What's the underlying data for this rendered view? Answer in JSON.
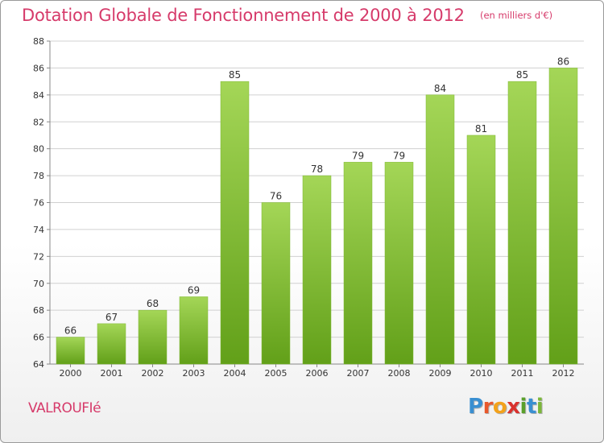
{
  "header": {
    "title": "Dotation Globale de Fonctionnement de 2000 à 2012",
    "unit": "(en milliers d'€)"
  },
  "commune": "VALROUFIé",
  "logo": {
    "letters": [
      "P",
      "r",
      "o",
      "x",
      "i",
      "t",
      "i"
    ],
    "colors": [
      "#3a8fd1",
      "#e8582c",
      "#f3a21b",
      "#d9322e",
      "#5aa02c",
      "#3a8fd1",
      "#7bb63a"
    ]
  },
  "colors": {
    "accent": "#d63a6a",
    "bar_light": "#a4d657",
    "bar_dark": "#62a019",
    "grid": "#d0d0d0"
  },
  "chart_data": {
    "type": "bar",
    "categories": [
      "2000",
      "2001",
      "2002",
      "2003",
      "2004",
      "2005",
      "2006",
      "2007",
      "2008",
      "2009",
      "2010",
      "2011",
      "2012"
    ],
    "values": [
      66,
      67,
      68,
      69,
      85,
      76,
      78,
      79,
      79,
      84,
      81,
      85,
      86
    ],
    "ylim": [
      64,
      88
    ],
    "yticks": [
      64,
      66,
      68,
      70,
      72,
      74,
      76,
      78,
      80,
      82,
      84,
      86,
      88
    ],
    "grid": true,
    "data_labels": true
  }
}
